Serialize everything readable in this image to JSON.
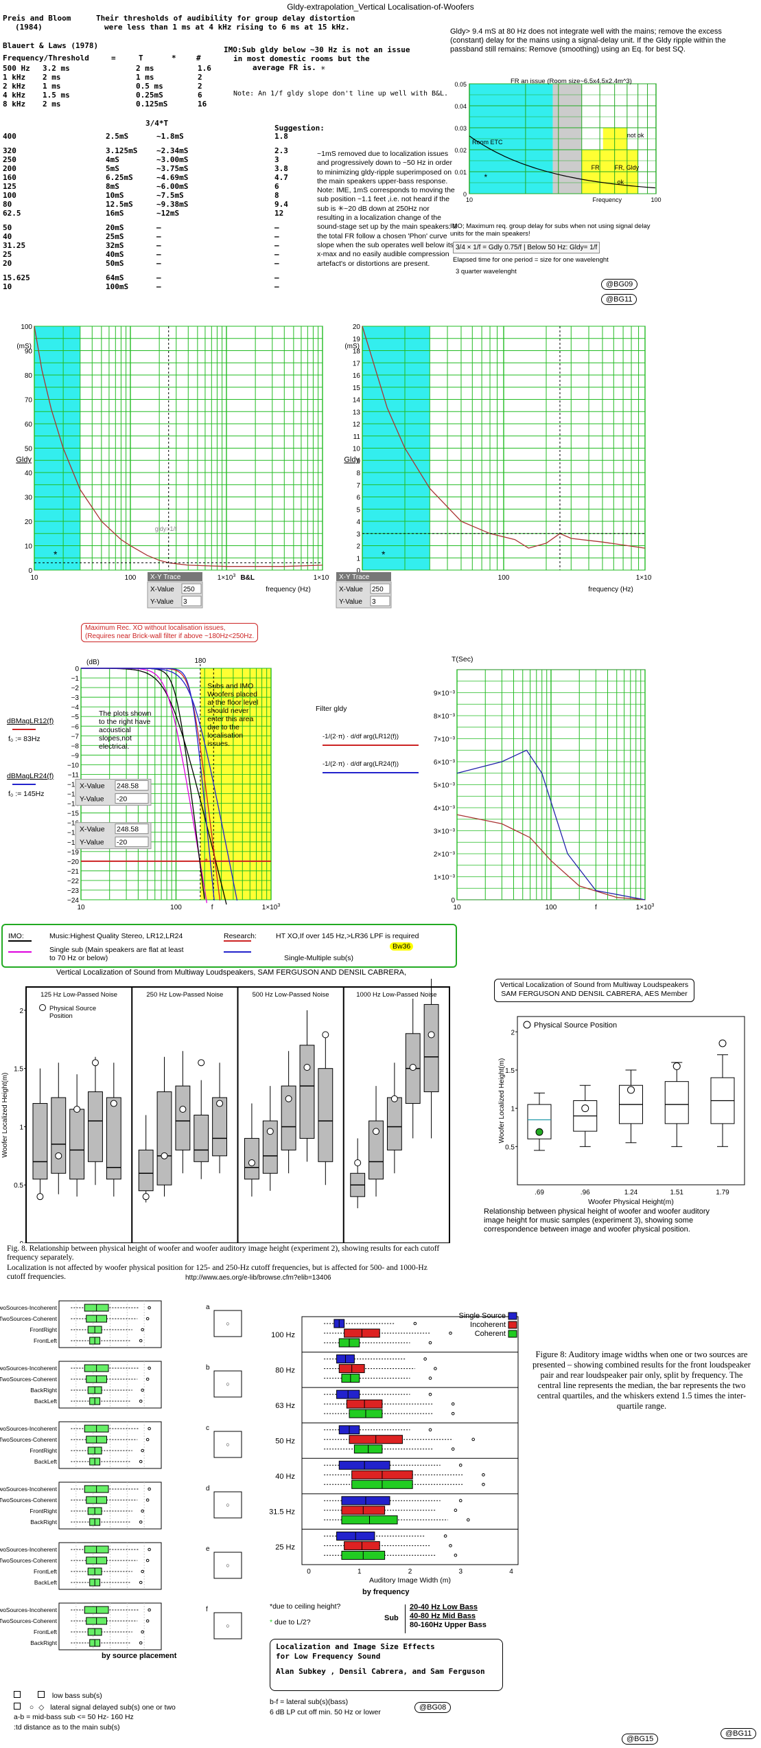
{
  "page_title": "Gldy-extrapolation_Vertical Localisation-of-Woofers",
  "preis": {
    "authors": "Preis and Bloom",
    "year": "(1984)",
    "text1": "Their thresholds of audibility for group delay distortion",
    "text2": "were less than 1 ms at 4 kHz rising to 6 ms at 15 kHz."
  },
  "blauert": {
    "title": "Blauert & Laws (1978)",
    "imo_note1": "IMO:Sub gldy below ~30 Hz is not an issue",
    "imo_note2": "in most domestic rooms but the",
    "imo_note3": "average FR is. ✳",
    "header": [
      "Frequency/Threshold",
      "=",
      "T",
      "*",
      "#"
    ],
    "rows": [
      [
        "500 Hz",
        "3.2 ms",
        "",
        "2 ms",
        "",
        "1.6"
      ],
      [
        "1 kHz",
        "2 ms",
        "",
        "1 ms",
        "",
        "2"
      ],
      [
        "2 kHz",
        "1 ms",
        "",
        "0.5 ms",
        "",
        "2"
      ],
      [
        "4 kHz",
        "1.5 ms",
        "",
        "0.25mS",
        "",
        "6"
      ],
      [
        "8 kHz",
        "2 ms",
        "",
        "0.125mS",
        "",
        "16"
      ]
    ],
    "note_slope": "Note: An 1/f gldy slope don't line up well with B&L.",
    "col2_header": "3/4*T",
    "suggestion_header": "Suggestion:",
    "rows2": [
      [
        "400",
        "",
        "2.5mS",
        "~1.8mS",
        "1.8"
      ],
      [
        "320",
        "",
        "3.125mS",
        "~2.34mS",
        "2.3"
      ],
      [
        "250",
        "",
        "4mS",
        "~3.00mS",
        "3"
      ],
      [
        "200",
        "",
        "5mS",
        "~3.75mS",
        "3.8"
      ],
      [
        "160",
        "",
        "6.25mS",
        "~4.69mS",
        "4.7"
      ],
      [
        "125",
        "",
        "8mS",
        "~6.00mS",
        "6"
      ],
      [
        "100",
        "",
        "10mS",
        "~7.5mS",
        "8"
      ],
      [
        "80",
        "",
        "12.5mS",
        "~9.38mS",
        "9.4"
      ],
      [
        "62.5",
        "",
        "16mS",
        "~12mS",
        "12"
      ],
      [
        "50",
        "",
        "20mS",
        "–",
        "–"
      ],
      [
        "40",
        "",
        "25mS",
        "–",
        "–"
      ],
      [
        "31.25",
        "",
        "32mS",
        "–",
        "–"
      ],
      [
        "25",
        "",
        "40mS",
        "–",
        "–"
      ],
      [
        "20",
        "",
        "50mS",
        "–",
        "–"
      ],
      [
        "15.625",
        "",
        "64mS",
        "–",
        "–"
      ],
      [
        "10",
        "",
        "100mS",
        "–",
        "–"
      ]
    ],
    "side_note": "~1mS removed due to localization issues and progressively down to ~50 Hz in order to minimizing gldy-ripple superimposed on the main speakers upper-bass response. Note: IME, 1mS corresponds to moving the sub position ~1.1 feet ,i.e. not heard if the sub is ✳~20 dB down at 250Hz nor resulting in a localization change of the sound-stage set up by the main speakers: If the total FR follow a chosen 'Phon' curve slope when the sub operates well below its x-max and no easily audible compression artefact's or distortions are present."
  },
  "right_note": {
    "text": "Gldy> 9.4 mS at 80 Hz does not integrate well with the mains; remove the excess (constant) delay for the mains using a signal-delay unit. If the Gldy ripple within the passband still remains: Remove (smoothing) using an Eq. for best SQ.",
    "chart_title": "FR an issue  (Room size~6.5x4.5x2.4m^3)",
    "room_label": "Room ETC",
    "notok": "not ok",
    "fr": "FR",
    "frgldy": "FR, Gldy",
    "ok": "ok",
    "freq_label": "Frequency",
    "imo2": "IMO; Maximum req. group delay for subs when not using signal delay units for the main speakers!",
    "eq": "3/4 × 1/f = Gdly 0.75/f | Below 50 Hz: Gldy= 1/f",
    "elapsed": "Elapsed time for one period = size for one wavelenght",
    "quarter": "3 quarter wavelenght",
    "tag1": "@BG09",
    "tag2": "@BG11"
  },
  "gd_left": {
    "ylabel": "Gldy",
    "unit": "(mS)",
    "xlabel": "frequency (Hz)",
    "annot": "gldy=1/f",
    "bl": "B&L",
    "xy_title": "X-Y Trace",
    "x_label": "X-Value",
    "x_value": "250",
    "y_label": "Y-Value",
    "y_value": "3"
  },
  "gd_right": {
    "ylabel": "Gldy",
    "unit": "(mS)",
    "xlabel": "frequency (Hz)",
    "xy_title": "X-Y Trace",
    "x_label": "X-Value",
    "x_value": "250",
    "y_label": "Y-Value",
    "y_value": "3"
  },
  "filters": {
    "rec_xo": "Maximum Rec. XO without localisation issues,",
    "rec_xo2": "(Requires near Brick-wall filter if above ~180Hz<250Hz.",
    "db": "(dB)",
    "lr12": "dBMagLR12(f)",
    "f0a": "f₀ := 83Hz",
    "lr24": "dBMagLR24(f)",
    "f0b": "f₀ := 145Hz",
    "plots_note": "The plots shown to the right have acoustical slopes,not electrical.",
    "subs_note": "Subs and IMO Woofers placed at the floor level should never enter this area due to the localisation issues.",
    "x1": "248.58",
    "y1": "-20",
    "x2": "248.58",
    "y2": "-20",
    "x_label": "X-Value",
    "y_label": "Y-Value",
    "mark180": "180",
    "tsec": "T(Sec)",
    "filter_gldy": "Filter gldy",
    "expr1": "-1/(2·π) · d/df arg(LR12(f))",
    "expr2": "-1/(2·π) · d/df arg(LR24(f))",
    "fvar": "f"
  },
  "legend_box": {
    "imo": "IMO:",
    "music": "Music:Highest Quality Stereo, LR12,LR24",
    "single": "Single sub (Main speakers are flat at least to 70 Hz or below)",
    "research": "Research:",
    "ht": "HT XO,If over 145 Hz,>LR36 LPF is required",
    "bw": "Bw36",
    "multi": "Single-Multiple sub(s)"
  },
  "vloc": {
    "title": "Vertical Localization of Sound from Multiway Loudspeakers, SAM FERGUSON AND DENSIL CABRERA,",
    "panels": [
      "125 Hz Low-Passed Noise",
      "250 Hz Low-Passed Noise",
      "500 Hz Low-Passed Noise",
      "1000 Hz Low-Passed Noise"
    ],
    "legend": "Physical Source Position",
    "ylabel": "Woofer Localized Height(m)",
    "caption": "Fig. 8. Relationship between physical height of woofer and woofer auditory image height (experiment 2), showing results for each cutoff frequency separately.",
    "caption2": "Localization is not affected by woofer physical position for 125- and 250-Hz cutoff frequencies, but is affected for 500- and 1000-Hz cutoff frequencies.",
    "url": "http://www.aes.org/e-lib/browse.cfm?elib=13406"
  },
  "vloc_right": {
    "title": "Vertical Localization of Sound from Multiway Loudspeakers",
    "authors": "SAM FERGUSON AND DENSIL CABRERA, AES Member",
    "legend": "Physical Source Position",
    "ylabel": "Woofer Localized Height(m)",
    "xlabel": "Woofer Physical Height(m)",
    "note": "Relationship between physical height of woofer and woofer auditory image height for music samples (experiment 3), showing some correspondence between image and woofer physical position."
  },
  "aiw": {
    "xlabel_left": "Auditory Image Width(m)",
    "by_source": "by source placement",
    "panel_letters": [
      "a",
      "b",
      "c",
      "d",
      "e",
      "f"
    ],
    "panels": [
      [
        "TwoSources-Incoherent",
        "TwoSources-Coherent",
        "FrontRight",
        "FrontLeft"
      ],
      [
        "TwoSources-Incoherent",
        "TwoSources-Coherent",
        "BackRight",
        "BackLeft"
      ],
      [
        "TwoSources-Incoherent",
        "TwoSources-Coherent",
        "FrontRight",
        "BackLeft"
      ],
      [
        "TwoSources-Incoherent",
        "TwoSources-Coherent",
        "FrontRight",
        "BackRight"
      ],
      [
        "TwoSources-Incoherent",
        "TwoSources-Coherent",
        "FrontLeft",
        "BackLeft"
      ],
      [
        "TwoSources-Incoherent",
        "TwoSources-Coherent",
        "FrontLeft",
        "BackRight"
      ]
    ],
    "freqs": [
      "100 Hz",
      "80 Hz",
      "63 Hz",
      "50 Hz",
      "40 Hz",
      "31.5 Hz",
      "25 Hz"
    ],
    "legend": [
      "Single Source",
      "Incoherent",
      "Coherent"
    ],
    "xlabel": "Auditory Image Width (m)",
    "by_freq": "by frequency",
    "fig8": "Figure 8: Auditory image widths when one or two sources are presented – showing combined results for the front loudspeaker pair and rear loudspeaker pair only, split by frequency. The central line represents the median, the bar represents the two central quartiles, and the whiskers extend 1.5 times the inter-quartile range.",
    "ceiling": "*due to ceiling height?",
    "l2": "due to L/2?",
    "sub": "Sub",
    "sub_ranges": [
      "20-40 Hz  Low Bass",
      "40-80 Hz  Mid Bass",
      "80-160Hz Upper Bass"
    ],
    "paper_title": "Localization and Image Size Effects for Low Frequency Sound",
    "paper_authors": "Alan Subkey , Densil Cabrera, and Sam Ferguson",
    "legend_low": "low bass sub(s)",
    "legend_lat": "lateral  signal delayed sub(s)  one or two",
    "legend_ab": "a-b = mid-bass sub <= 50 Hz- 160 Hz",
    "legend_td": ":td distance as to the main sub(s)",
    "bf": "b-f   =  lateral sub(s)(bass)",
    "lp": "6 dB LP cut off min. 50 Hz or lower",
    "tag_bg08": "@BG08",
    "tag_bg15": "@BG15",
    "tag_bg11": "@BG11"
  },
  "chart_data": [
    {
      "type": "line",
      "title": "",
      "ylabel": "Gldy (mS)",
      "xlabel": "frequency (Hz)",
      "xscale": "log",
      "xlim": [
        10,
        10000
      ],
      "ylim": [
        0,
        100
      ],
      "series": [
        {
          "values": [
            [
              10,
              100
            ],
            [
              12,
              82
            ],
            [
              15,
              66
            ],
            [
              20,
              50
            ],
            [
              30,
              33
            ],
            [
              50,
              20
            ],
            [
              80,
              12.5
            ],
            [
              100,
              10
            ],
            [
              150,
              6
            ],
            [
              200,
              4
            ],
            [
              250,
              3
            ],
            [
              400,
              2
            ],
            [
              1000,
              1.5
            ],
            [
              4000,
              1.5
            ],
            [
              10000,
              2
            ]
          ]
        }
      ]
    },
    {
      "type": "line",
      "title": "",
      "ylabel": "Gldy (mS)",
      "xlabel": "frequency (Hz)",
      "xscale": "log",
      "xlim": [
        10,
        1000
      ],
      "ylim": [
        0,
        20
      ],
      "series": [
        {
          "values": [
            [
              10,
              20
            ],
            [
              15,
              13.3
            ],
            [
              20,
              10
            ],
            [
              30,
              6.7
            ],
            [
              50,
              4
            ],
            [
              80,
              3
            ],
            [
              120,
              2.5
            ],
            [
              150,
              1.8
            ],
            [
              200,
              2.2
            ],
            [
              250,
              3
            ],
            [
              300,
              2.6
            ],
            [
              500,
              2.3
            ],
            [
              1000,
              1.8
            ]
          ]
        }
      ]
    },
    {
      "type": "line",
      "title": "",
      "ylabel": "dB",
      "xscale": "log",
      "xlim": [
        10,
        1000
      ],
      "ylim": [
        -24,
        0
      ],
      "series": [
        {
          "name": "LR12 83Hz",
          "values": [
            [
              10,
              0
            ],
            [
              40,
              -1
            ],
            [
              83,
              -6
            ],
            [
              150,
              -13
            ],
            [
              250,
              -20
            ],
            [
              400,
              -24
            ]
          ]
        },
        {
          "name": "LR24 145Hz",
          "values": [
            [
              10,
              0
            ],
            [
              80,
              -1
            ],
            [
              145,
              -6
            ],
            [
              200,
              -13
            ],
            [
              248.58,
              -20
            ],
            [
              300,
              -24
            ]
          ]
        }
      ]
    },
    {
      "type": "line",
      "title": "",
      "ylabel": "T(Sec)",
      "xscale": "log",
      "xlim": [
        10,
        1000
      ],
      "ylim": [
        0,
        0.01
      ],
      "series": [
        {
          "name": "LR12",
          "values": [
            [
              10,
              0.0037
            ],
            [
              30,
              0.0033
            ],
            [
              60,
              0.0027
            ],
            [
              100,
              0.0017
            ],
            [
              200,
              0.0006
            ],
            [
              500,
              0.0001
            ],
            [
              1000,
              0
            ]
          ]
        },
        {
          "name": "LR24",
          "values": [
            [
              10,
              0.0055
            ],
            [
              30,
              0.006
            ],
            [
              55,
              0.0065
            ],
            [
              80,
              0.0055
            ],
            [
              150,
              0.002
            ],
            [
              300,
              0.0004
            ],
            [
              1000,
              0
            ]
          ]
        }
      ]
    },
    {
      "type": "scatter",
      "title": "Vertical Localization of Sound from Multiway Loudspeakers",
      "xlabel": "Woofer Physical Height(m)",
      "ylabel": "Woofer Localized Height(m)",
      "categories": [
        ".69",
        ".96",
        "1.24",
        "1.51",
        "1.79"
      ],
      "ylim": [
        0,
        2
      ],
      "series": [
        {
          "name": "Median",
          "values": [
            0.85,
            0.9,
            1.05,
            1.05,
            1.1
          ]
        },
        {
          "name": "Physical Source Position",
          "values": [
            0.69,
            0.96,
            1.24,
            1.51,
            1.79
          ]
        }
      ]
    },
    {
      "type": "bar",
      "title": "",
      "xlabel": "Auditory Image Width (m)",
      "categories": [
        "100 Hz",
        "80 Hz",
        "63 Hz",
        "50 Hz",
        "40 Hz",
        "31.5 Hz",
        "25 Hz"
      ],
      "xlim": [
        0,
        4
      ],
      "series": [
        {
          "name": "Single Source",
          "values": [
            0.6,
            0.6,
            0.7,
            0.8,
            1.2,
            1.0,
            0.7
          ]
        },
        {
          "name": "Incoherent",
          "values": [
            1.1,
            0.9,
            1.2,
            1.3,
            1.7,
            1.5,
            1.0
          ]
        },
        {
          "name": "Coherent",
          "values": [
            0.9,
            0.8,
            1.1,
            1.1,
            1.6,
            1.2,
            1.0
          ]
        }
      ]
    }
  ]
}
